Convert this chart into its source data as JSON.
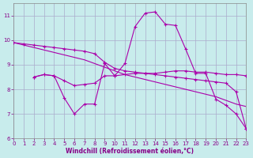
{
  "xlabel": "Windchill (Refroidissement éolien,°C)",
  "background_color": "#c8ecec",
  "grid_color": "#aaaacc",
  "line_color": "#aa00aa",
  "xlim": [
    0,
    23
  ],
  "ylim": [
    6,
    11.5
  ],
  "yticks": [
    6,
    7,
    8,
    9,
    10,
    11
  ],
  "xticks": [
    0,
    1,
    2,
    3,
    4,
    5,
    6,
    7,
    8,
    9,
    10,
    11,
    12,
    13,
    14,
    15,
    16,
    17,
    18,
    19,
    20,
    21,
    22,
    23
  ],
  "line_top_x": [
    0,
    1,
    2,
    3,
    4,
    5,
    6,
    7,
    8,
    9,
    10,
    11,
    12,
    13,
    14,
    15,
    16,
    17,
    18,
    19,
    20,
    21,
    22,
    23
  ],
  "line_top_y": [
    9.9,
    9.85,
    9.8,
    9.75,
    9.7,
    9.65,
    9.6,
    9.55,
    9.45,
    9.1,
    8.85,
    8.75,
    8.7,
    8.65,
    8.6,
    8.55,
    8.5,
    8.45,
    8.4,
    8.35,
    8.3,
    8.25,
    7.9,
    6.4
  ],
  "line_diag_x": [
    0,
    1,
    2,
    3,
    4,
    5,
    6,
    7,
    8,
    9,
    10,
    11,
    12,
    13,
    14,
    15,
    16,
    17,
    18,
    19,
    20,
    21,
    22,
    23
  ],
  "line_diag_y": [
    9.9,
    9.8,
    9.7,
    9.6,
    9.5,
    9.4,
    9.3,
    9.2,
    9.05,
    8.9,
    8.75,
    8.6,
    8.5,
    8.4,
    8.3,
    8.2,
    8.1,
    8.0,
    7.9,
    7.8,
    7.7,
    7.55,
    7.4,
    7.3
  ],
  "line_flat_x": [
    2,
    3,
    4,
    5,
    6,
    7,
    8,
    9,
    10,
    11,
    12,
    13,
    14,
    15,
    16,
    17,
    18,
    19,
    20,
    21,
    22,
    23
  ],
  "line_flat_y": [
    8.5,
    8.6,
    8.55,
    8.35,
    8.15,
    8.2,
    8.25,
    8.55,
    8.55,
    8.6,
    8.65,
    8.65,
    8.65,
    8.7,
    8.75,
    8.75,
    8.7,
    8.7,
    8.65,
    8.6,
    8.6,
    8.55
  ],
  "line_main_x": [
    2,
    3,
    4,
    5,
    6,
    7,
    8,
    9,
    10,
    11,
    12,
    13,
    14,
    15,
    16,
    17,
    18,
    19,
    20,
    21,
    22,
    23
  ],
  "line_main_y": [
    8.5,
    8.6,
    8.55,
    7.65,
    7.0,
    7.4,
    7.4,
    9.05,
    8.55,
    9.05,
    10.55,
    11.1,
    11.15,
    10.65,
    10.6,
    9.65,
    8.65,
    8.65,
    7.6,
    7.35,
    7.0,
    6.4
  ]
}
